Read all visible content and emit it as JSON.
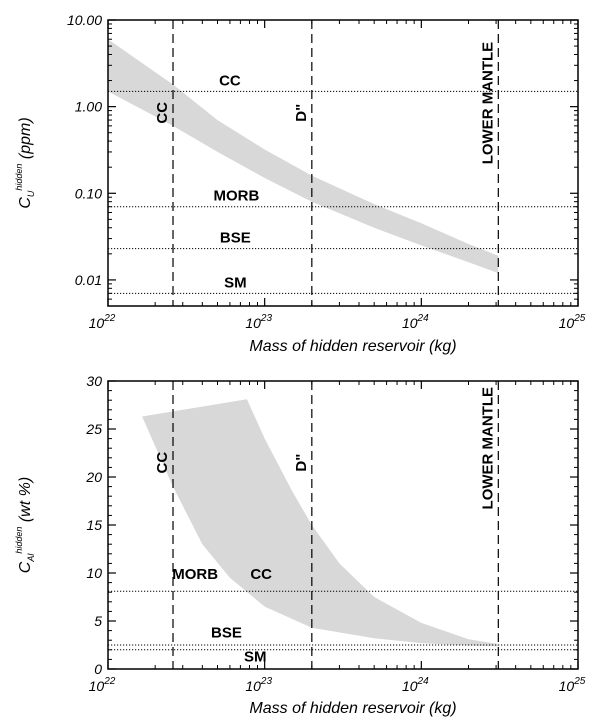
{
  "chart_data": [
    {
      "type": "area",
      "xscale": "log",
      "yscale": "log",
      "xlim": [
        1e+22,
        1e+25
      ],
      "ylim": [
        0.005,
        10
      ],
      "xticks": [
        {
          "v": 1e+22,
          "base": "10",
          "exp": "22"
        },
        {
          "v": 1e+23,
          "base": "10",
          "exp": "23"
        },
        {
          "v": 1e+24,
          "base": "10",
          "exp": "24"
        },
        {
          "v": 1e+25,
          "base": "10",
          "exp": "25"
        }
      ],
      "yticks": [
        {
          "v": 0.01,
          "label": "0.01"
        },
        {
          "v": 0.1,
          "label": "0.10"
        },
        {
          "v": 1,
          "label": "1.00"
        },
        {
          "v": 10,
          "label": "10.00"
        }
      ],
      "xlabel": "Mass of hidden reservoir (kg)",
      "ylabel": {
        "main": "C",
        "sub": "U",
        "sup": "hidden",
        "unit": "(ppm)"
      },
      "band": {
        "upper": [
          [
            1e+22,
            6.0
          ],
          [
            2.6e+22,
            1.8
          ],
          [
            5e+22,
            0.7
          ],
          [
            1e+23,
            0.32
          ],
          [
            2e+23,
            0.16
          ],
          [
            5e+23,
            0.075
          ],
          [
            1e+24,
            0.045
          ],
          [
            2e+24,
            0.026
          ],
          [
            3.1e+24,
            0.019
          ]
        ],
        "lower": [
          [
            1e+22,
            1.5
          ],
          [
            2.6e+22,
            0.6
          ],
          [
            5e+22,
            0.3
          ],
          [
            1e+23,
            0.15
          ],
          [
            2e+23,
            0.08
          ],
          [
            5e+23,
            0.04
          ],
          [
            1e+24,
            0.025
          ],
          [
            2e+24,
            0.016
          ],
          [
            3.1e+24,
            0.012
          ]
        ]
      },
      "hlines": [
        {
          "label": "CC",
          "y": 1.5,
          "label_x": 6e+22
        },
        {
          "label": "MORB",
          "y": 0.07,
          "label_x": 6.6e+22
        },
        {
          "label": "BSE",
          "y": 0.023,
          "label_x": 6.5e+22
        },
        {
          "label": "SM",
          "y": 0.007,
          "label_x": 6.5e+22
        }
      ],
      "vlines": [
        {
          "label": "CC",
          "x": 2.6e+22,
          "label_y": 0.85
        },
        {
          "label": "D\"",
          "x": 2e+23,
          "label_y": 0.85
        },
        {
          "label": "LOWER MANTLE",
          "x": 3.1e+24,
          "label_y": 1.1
        }
      ]
    },
    {
      "type": "area",
      "xscale": "log",
      "yscale": "linear",
      "xlim": [
        1e+22,
        1e+25
      ],
      "ylim": [
        0,
        30
      ],
      "xticks": [
        {
          "v": 1e+22,
          "base": "10",
          "exp": "22"
        },
        {
          "v": 1e+23,
          "base": "10",
          "exp": "23"
        },
        {
          "v": 1e+24,
          "base": "10",
          "exp": "24"
        },
        {
          "v": 1e+25,
          "base": "10",
          "exp": "25"
        }
      ],
      "yticks": [
        {
          "v": 0,
          "label": "0"
        },
        {
          "v": 5,
          "label": "5"
        },
        {
          "v": 10,
          "label": "10"
        },
        {
          "v": 15,
          "label": "15"
        },
        {
          "v": 20,
          "label": "20"
        },
        {
          "v": 25,
          "label": "25"
        },
        {
          "v": 30,
          "label": "30"
        }
      ],
      "xlabel": "Mass of hidden reservoir (kg)",
      "ylabel": {
        "main": "C",
        "sub": "Al",
        "sup": "hidden",
        "unit": "(wt %)"
      },
      "band": {
        "upper": [
          [
            1.65e+22,
            26.3
          ],
          [
            7.7e+22,
            28.1
          ],
          [
            1e+23,
            24.0
          ],
          [
            1.5e+23,
            18.5
          ],
          [
            2e+23,
            15.0
          ],
          [
            3e+23,
            11.0
          ],
          [
            5e+23,
            7.5
          ],
          [
            1e+24,
            4.8
          ],
          [
            2e+24,
            3.1
          ],
          [
            3.1e+24,
            2.6
          ]
        ],
        "lower": [
          [
            1.65e+22,
            26.3
          ],
          [
            2.6e+22,
            19.0
          ],
          [
            4e+22,
            13.0
          ],
          [
            6e+22,
            9.5
          ],
          [
            1e+23,
            6.5
          ],
          [
            2e+23,
            4.3
          ],
          [
            5e+23,
            3.2
          ],
          [
            1e+24,
            2.7
          ],
          [
            2e+24,
            2.45
          ],
          [
            3.1e+24,
            2.35
          ]
        ]
      },
      "hlines": [
        {
          "label": "",
          "y": 8.1,
          "label_x": null
        },
        {
          "label": "",
          "y": 2.5,
          "label_x": null
        },
        {
          "label": "",
          "y": 2.0,
          "label_x": null
        }
      ],
      "texts": [
        {
          "label": "MORB",
          "x": 3.6e+22,
          "y": 9.4
        },
        {
          "label": "CC",
          "x": 9.5e+22,
          "y": 9.4
        },
        {
          "label": "BSE",
          "x": 5.7e+22,
          "y": 3.3
        },
        {
          "label": "SM",
          "x": 8.7e+22,
          "y": 0.8
        }
      ],
      "vlines": [
        {
          "label": "CC",
          "x": 2.6e+22,
          "label_y": 21.5
        },
        {
          "label": "D\"",
          "x": 2e+23,
          "label_y": 21.5
        },
        {
          "label": "LOWER MANTLE",
          "x": 3.1e+24,
          "label_y": 23.0
        }
      ]
    }
  ]
}
